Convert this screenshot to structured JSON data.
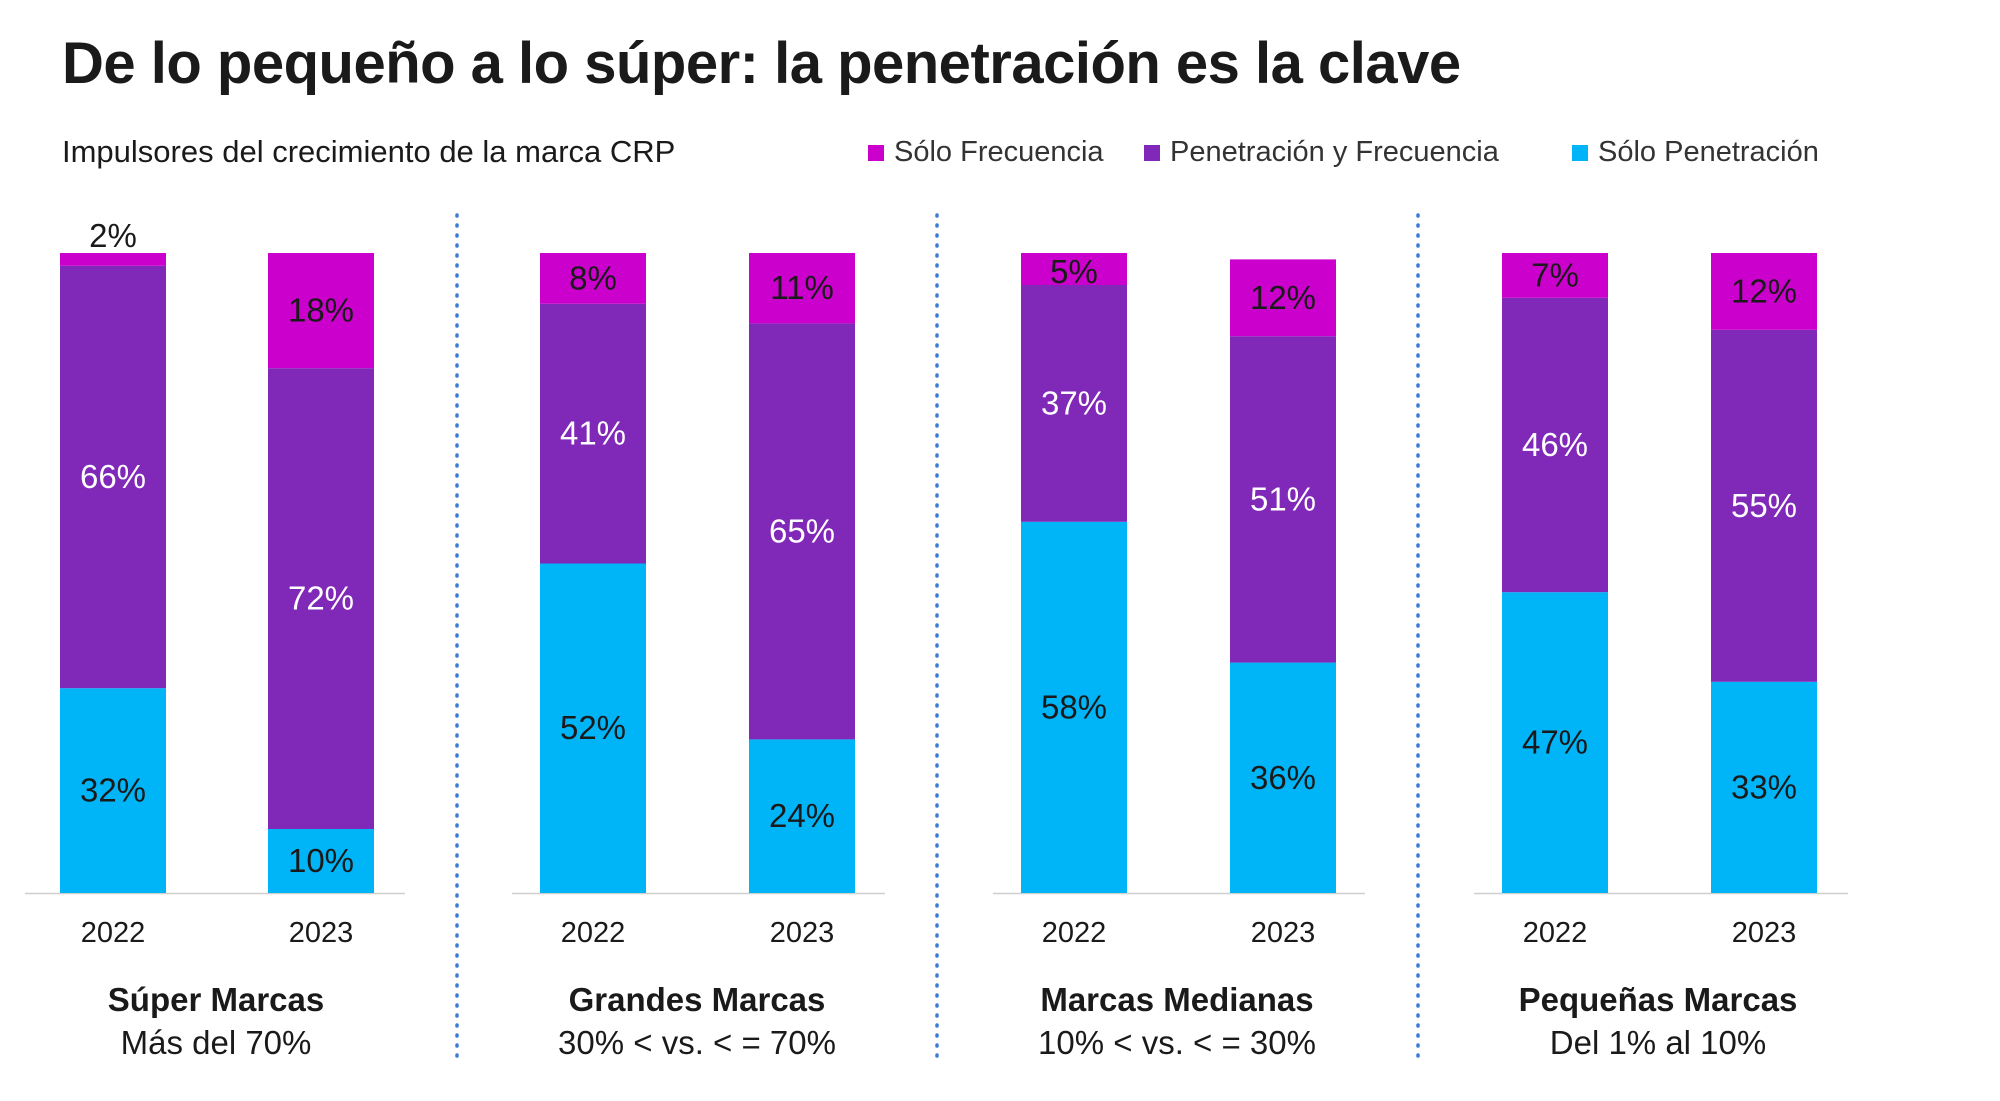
{
  "title": "De lo pequeño a lo súper: la penetración es la clave",
  "subtitle": "Impulsores del crecimiento de la marca CRP",
  "colors": {
    "solo_frecuencia": "#cc00cc",
    "penetracion_y_frecuencia": "#8028b8",
    "solo_penetracion": "#00b4f8",
    "divider": "#3a7bd5"
  },
  "legend": [
    {
      "label": "Sólo Frecuencia",
      "color": "#cc00cc"
    },
    {
      "label": "Penetración y Frecuencia",
      "color": "#8028b8"
    },
    {
      "label": "Sólo Penetración",
      "color": "#00b4f8"
    }
  ],
  "chart_data": {
    "type": "bar",
    "stacked": true,
    "ylim": [
      0,
      100
    ],
    "groups": [
      {
        "name": "Súper Marcas",
        "description": "Más del 70%",
        "categories": [
          "2022",
          "2023"
        ],
        "series": [
          {
            "name": "Sólo Penetración",
            "values": [
              32,
              10
            ],
            "labels": [
              "32%",
              "10%"
            ]
          },
          {
            "name": "Penetración y Frecuencia",
            "values": [
              66,
              72
            ],
            "labels": [
              "66%",
              "72%"
            ]
          },
          {
            "name": "Sólo Frecuencia",
            "values": [
              2,
              18
            ],
            "labels": [
              "2%",
              "18%"
            ]
          }
        ]
      },
      {
        "name": "Grandes Marcas",
        "description": "30% < vs. < = 70%",
        "categories": [
          "2022",
          "2023"
        ],
        "series": [
          {
            "name": "Sólo Penetración",
            "values": [
              52,
              24
            ],
            "labels": [
              "52%",
              "24%"
            ]
          },
          {
            "name": "Penetración y Frecuencia",
            "values": [
              41,
              65
            ],
            "labels": [
              "41%",
              "65%"
            ]
          },
          {
            "name": "Sólo Frecuencia",
            "values": [
              8,
              11
            ],
            "labels": [
              "8%",
              "11%"
            ]
          }
        ]
      },
      {
        "name": "Marcas Medianas",
        "description": "10% < vs. < = 30%",
        "categories": [
          "2022",
          "2023"
        ],
        "series": [
          {
            "name": "Sólo Penetración",
            "values": [
              58,
              36
            ],
            "labels": [
              "58%",
              "36%"
            ]
          },
          {
            "name": "Penetración y Frecuencia",
            "values": [
              37,
              51
            ],
            "labels": [
              "37%",
              "51%"
            ]
          },
          {
            "name": "Sólo Frecuencia",
            "values": [
              5,
              12
            ],
            "labels": [
              "5%",
              "12%"
            ]
          }
        ]
      },
      {
        "name": "Pequeñas Marcas",
        "description": "Del 1% al 10%",
        "categories": [
          "2022",
          "2023"
        ],
        "series": [
          {
            "name": "Sólo Penetración",
            "values": [
              47,
              33
            ],
            "labels": [
              "47%",
              "33%"
            ]
          },
          {
            "name": "Penetración y Frecuencia",
            "values": [
              46,
              55
            ],
            "labels": [
              "46%",
              "55%"
            ]
          },
          {
            "name": "Sólo Frecuencia",
            "values": [
              7,
              12
            ],
            "labels": [
              "7%",
              "12%"
            ]
          }
        ]
      }
    ]
  }
}
